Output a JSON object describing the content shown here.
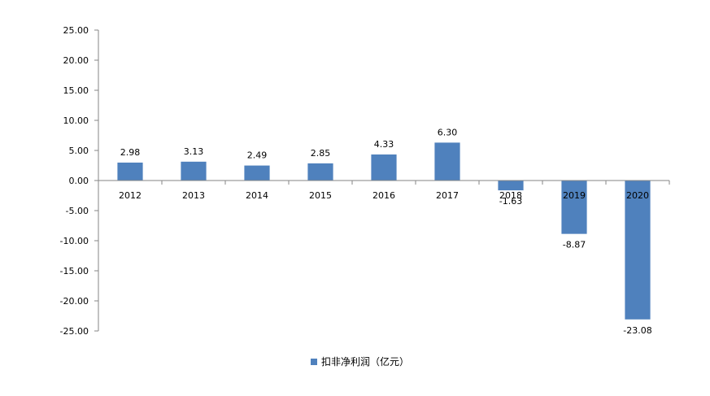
{
  "chart_data": {
    "type": "bar",
    "categories": [
      "2012",
      "2013",
      "2014",
      "2015",
      "2016",
      "2017",
      "2018",
      "2019",
      "2020"
    ],
    "series": [
      {
        "name": "扣非净利润（亿元）",
        "values": [
          2.98,
          3.13,
          2.49,
          2.85,
          4.33,
          6.3,
          -1.63,
          -8.87,
          -23.08
        ],
        "color": "#4f81bd"
      }
    ],
    "data_labels": [
      "2.98",
      "3.13",
      "2.49",
      "2.85",
      "4.33",
      "6.30",
      "-1.63",
      "-8.87",
      "-23.08"
    ],
    "y_tick_labels": [
      "25.00",
      "20.00",
      "15.00",
      "10.00",
      "5.00",
      "0.00",
      "-5.00",
      "-10.00",
      "-15.00",
      "-20.00",
      "-25.00"
    ],
    "ylim": [
      -25,
      25
    ],
    "y_step": 5,
    "grid": false,
    "legend_position": "bottom",
    "title": "",
    "xlabel": "",
    "ylabel": ""
  },
  "legend": {
    "label": "扣非净利润（亿元）",
    "color": "#4f81bd"
  }
}
